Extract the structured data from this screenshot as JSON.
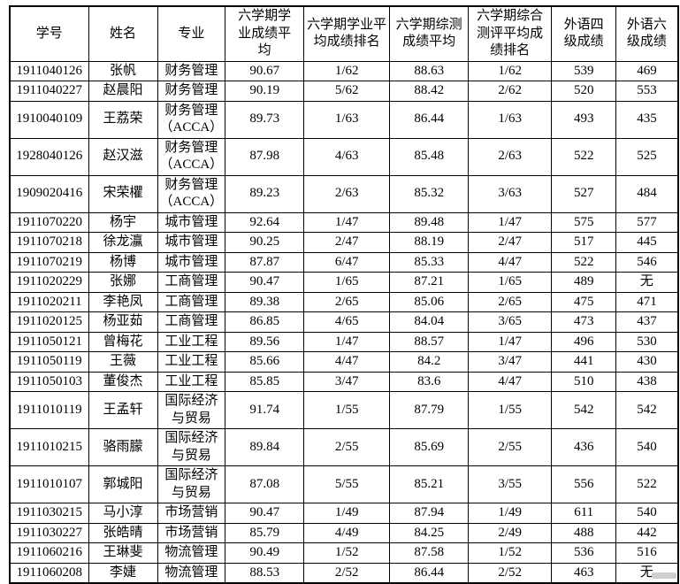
{
  "colors": {
    "background": "#ffffff",
    "border": "#000000",
    "text": "#000000"
  },
  "table": {
    "columns": [
      {
        "key": "student-id",
        "label": "学号"
      },
      {
        "key": "name",
        "label": "姓名"
      },
      {
        "key": "major",
        "label": "专业"
      },
      {
        "key": "academic-avg",
        "label": "六学期学\n业成绩平\n均"
      },
      {
        "key": "academic-rank",
        "label": "六学期学业平\n均成绩排名"
      },
      {
        "key": "comprehensive-avg",
        "label": "六学期综测\n成绩平均"
      },
      {
        "key": "comprehensive-rank",
        "label": "六学期综合\n测评平均成\n绩排名"
      },
      {
        "key": "cet4",
        "label": "外语四\n级成绩"
      },
      {
        "key": "cet6",
        "label": "外语六\n级成绩"
      }
    ],
    "rows": [
      [
        "1911040126",
        "张帆",
        "财务管理",
        "90.67",
        "1/62",
        "88.63",
        "1/62",
        "539",
        "469"
      ],
      [
        "1911040227",
        "赵晨阳",
        "财务管理",
        "90.19",
        "5/62",
        "88.42",
        "2/62",
        "520",
        "553"
      ],
      [
        "1910040109",
        "王荔荣",
        "财务管理\n（ACCA）",
        "89.73",
        "1/63",
        "86.44",
        "1/63",
        "493",
        "435"
      ],
      [
        "1928040126",
        "赵汉滋",
        "财务管理\n（ACCA）",
        "87.98",
        "4/63",
        "85.48",
        "2/63",
        "522",
        "525"
      ],
      [
        "1909020416",
        "宋荣欋",
        "财务管理\n（ACCA）",
        "89.23",
        "2/63",
        "85.32",
        "3/63",
        "527",
        "484"
      ],
      [
        "1911070220",
        "杨宇",
        "城市管理",
        "92.64",
        "1/47",
        "89.48",
        "1/47",
        "575",
        "577"
      ],
      [
        "1911070218",
        "徐龙灜",
        "城市管理",
        "90.25",
        "2/47",
        "88.19",
        "2/47",
        "517",
        "445"
      ],
      [
        "1911070219",
        "杨博",
        "城市管理",
        "87.87",
        "6/47",
        "85.33",
        "4/47",
        "522",
        "546"
      ],
      [
        "1911020229",
        "张娜",
        "工商管理",
        "90.47",
        "1/65",
        "87.21",
        "1/65",
        "489",
        "无"
      ],
      [
        "1911020211",
        "李艳凤",
        "工商管理",
        "89.38",
        "2/65",
        "85.06",
        "2/65",
        "475",
        "471"
      ],
      [
        "1911020125",
        "杨亚茹",
        "工商管理",
        "86.85",
        "4/65",
        "84.04",
        "3/65",
        "473",
        "437"
      ],
      [
        "1911050121",
        "曾梅花",
        "工业工程",
        "89.56",
        "1/47",
        "88.57",
        "1/47",
        "496",
        "530"
      ],
      [
        "1911050119",
        "王薇",
        "工业工程",
        "85.66",
        "4/47",
        "84.2",
        "3/47",
        "441",
        "430"
      ],
      [
        "1911050103",
        "董俊杰",
        "工业工程",
        "85.85",
        "3/47",
        "83.6",
        "4/47",
        "510",
        "438"
      ],
      [
        "1911010119",
        "王孟轩",
        "国际经济\n与贸易",
        "91.74",
        "1/55",
        "87.79",
        "1/55",
        "542",
        "542"
      ],
      [
        "1911010215",
        "骆雨朦",
        "国际经济\n与贸易",
        "89.84",
        "2/55",
        "85.69",
        "2/55",
        "436",
        "540"
      ],
      [
        "1911010107",
        "郭城阳",
        "国际经济\n与贸易",
        "87.08",
        "5/55",
        "85.21",
        "3/55",
        "556",
        "522"
      ],
      [
        "1911030215",
        "马小淳",
        "市场营销",
        "90.47",
        "1/49",
        "87.94",
        "1/49",
        "611",
        "540"
      ],
      [
        "1911030227",
        "张皓晴",
        "市场营销",
        "85.79",
        "4/49",
        "84.25",
        "2/49",
        "488",
        "442"
      ],
      [
        "1911060216",
        "王琳斐",
        "物流管理",
        "90.49",
        "1/52",
        "87.58",
        "1/52",
        "536",
        "516"
      ],
      [
        "1911060208",
        "李婕",
        "物流管理",
        "88.53",
        "2/52",
        "86.44",
        "2/52",
        "463",
        "无"
      ]
    ]
  }
}
